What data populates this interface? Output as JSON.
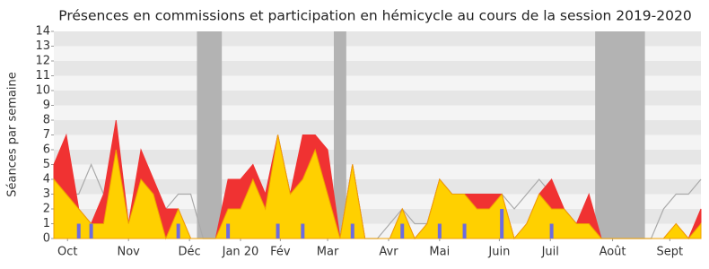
{
  "chart_data": {
    "type": "area",
    "title": "Présences en commissions et participation en hémicycle au cours de la session 2019-2020",
    "y_label": "Séances par semaine",
    "x": [
      0,
      1,
      2,
      3,
      4,
      5,
      6,
      7,
      8,
      9,
      10,
      11,
      12,
      13,
      14,
      15,
      16,
      17,
      18,
      19,
      20,
      21,
      22,
      23,
      24,
      25,
      26,
      27,
      28,
      29,
      30,
      31,
      32,
      33,
      34,
      35,
      36,
      37,
      38,
      39,
      40,
      41,
      42,
      43,
      44,
      45,
      46,
      47,
      48,
      49,
      50,
      51,
      52
    ],
    "xlim": [
      0,
      52
    ],
    "xticks": [
      {
        "value": 1.1,
        "label": "Oct"
      },
      {
        "value": 6,
        "label": "Nov"
      },
      {
        "value": 10.9,
        "label": "Déc"
      },
      {
        "value": 15,
        "label": "Jan 20"
      },
      {
        "value": 18.2,
        "label": "Fév"
      },
      {
        "value": 22,
        "label": "Mar"
      },
      {
        "value": 26.9,
        "label": "Avr"
      },
      {
        "value": 31,
        "label": "Mai"
      },
      {
        "value": 35.8,
        "label": "Juin"
      },
      {
        "value": 39.9,
        "label": "Juil"
      },
      {
        "value": 44.9,
        "label": "Août"
      },
      {
        "value": 49.5,
        "label": "Sept"
      }
    ],
    "ylim": [
      0,
      14
    ],
    "yticks": [
      0,
      1,
      2,
      3,
      4,
      5,
      6,
      7,
      8,
      9,
      10,
      11,
      12,
      13,
      14
    ],
    "grid": true,
    "shaded_ranges": [
      [
        11.5,
        13.5
      ],
      [
        22.5,
        23.5
      ],
      [
        43.5,
        47.5
      ]
    ],
    "shade_color": "#b3b3b3",
    "median": {
      "color": "#aaaaaa",
      "values": [
        4,
        3,
        3,
        5,
        3,
        4,
        1,
        4,
        3,
        2,
        3,
        3,
        0,
        0,
        3,
        3,
        4,
        2,
        7,
        3,
        4,
        6,
        3,
        0,
        5,
        0,
        0,
        1,
        2,
        1,
        1,
        4,
        3,
        3,
        3,
        3,
        3,
        2,
        3,
        4,
        3,
        2,
        1,
        2,
        0,
        0,
        0,
        0,
        0,
        2,
        3,
        3,
        4
      ]
    },
    "series": [
      {
        "color": "#f03232",
        "values": [
          5,
          7,
          2,
          1,
          3,
          8,
          1,
          6,
          4,
          2,
          2,
          0,
          0,
          0,
          4,
          4,
          5,
          3,
          7,
          3,
          7,
          7,
          6,
          0,
          5,
          0,
          0,
          0,
          2,
          0,
          1,
          4,
          3,
          3,
          3,
          3,
          3,
          0,
          1,
          3,
          4,
          2,
          1,
          3,
          0,
          0,
          0,
          0,
          0,
          0,
          1,
          0,
          2
        ]
      },
      {
        "color": "#ffd000",
        "values": [
          4,
          3,
          2,
          1,
          1,
          6,
          1,
          4,
          3,
          0,
          2,
          0,
          0,
          0,
          2,
          2,
          4,
          2,
          7,
          3,
          4,
          6,
          3,
          0,
          5,
          0,
          0,
          0,
          2,
          0,
          1,
          4,
          3,
          3,
          2,
          2,
          3,
          0,
          1,
          3,
          2,
          2,
          1,
          1,
          0,
          0,
          0,
          0,
          0,
          0,
          1,
          0,
          1
        ]
      }
    ],
    "bars": {
      "color": "#6b6be0",
      "values": [
        0,
        0,
        1,
        1,
        0,
        0,
        0,
        0,
        0,
        0,
        1,
        0,
        0,
        0,
        1,
        0,
        0,
        0,
        1,
        0,
        1,
        0,
        0,
        0,
        1,
        0,
        0,
        0,
        1,
        0,
        0,
        1,
        0,
        1,
        0,
        0,
        2,
        0,
        0,
        0,
        1,
        0,
        0,
        0,
        0,
        0,
        0,
        0,
        0,
        0,
        0,
        0,
        0
      ]
    }
  }
}
